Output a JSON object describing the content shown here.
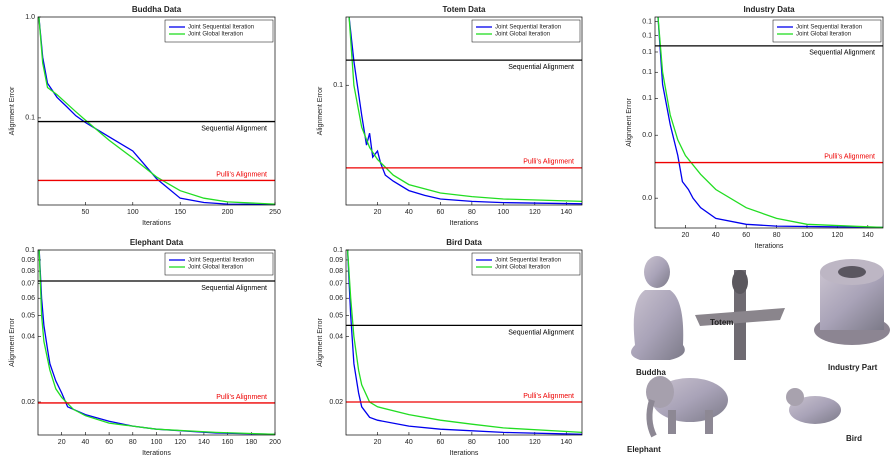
{
  "chart_data": [
    {
      "type": "line",
      "title": "Buddha Data",
      "xlabel": "Iterations",
      "ylabel": "Alignment Error",
      "log_y": true,
      "xlim": [
        0,
        250
      ],
      "ylim": [
        0.0137,
        1
      ],
      "xticks": [
        50,
        100,
        150,
        200,
        250
      ],
      "yticks": [
        {
          "value": 1,
          "label": "1.0"
        },
        0.1
      ],
      "series": [
        {
          "name": "Joint Sequential Iteration",
          "color": "#0000ee",
          "x": [
            1,
            5,
            10,
            20,
            30,
            40,
            50,
            75,
            100,
            125,
            150,
            175,
            200,
            250
          ],
          "values": [
            1.0,
            0.4,
            0.22,
            0.16,
            0.13,
            0.105,
            0.09,
            0.065,
            0.047,
            0.025,
            0.016,
            0.0145,
            0.014,
            0.0138
          ]
        },
        {
          "name": "Joint Global Iteration",
          "color": "#22dd22",
          "x": [
            1,
            5,
            10,
            20,
            30,
            40,
            50,
            75,
            100,
            125,
            150,
            175,
            200,
            250
          ],
          "values": [
            1.0,
            0.35,
            0.2,
            0.17,
            0.14,
            0.115,
            0.095,
            0.06,
            0.04,
            0.026,
            0.019,
            0.016,
            0.0147,
            0.014
          ]
        }
      ],
      "hlines": [
        {
          "label": "Sequential Alignment",
          "value": 0.092,
          "color": "#000000"
        },
        {
          "label": "Pulli's Alignment",
          "value": 0.024,
          "color": "#ee0000"
        }
      ]
    },
    {
      "type": "line",
      "title": "Totem Data",
      "xlabel": "Iterations",
      "ylabel": "Alignment Error",
      "log_y": false,
      "xlim": [
        0,
        150
      ],
      "ylim": [
        0,
        0.157
      ],
      "xticks": [
        20,
        40,
        60,
        80,
        100,
        120,
        140
      ],
      "yticks": [
        0.1
      ],
      "series": [
        {
          "name": "Joint Sequential Iteration",
          "color": "#0000ee",
          "x": [
            2,
            5,
            10,
            13,
            15,
            17,
            20,
            22,
            25,
            30,
            40,
            50,
            60,
            80,
            100,
            150
          ],
          "values": [
            0.157,
            0.12,
            0.075,
            0.05,
            0.06,
            0.04,
            0.045,
            0.035,
            0.025,
            0.02,
            0.012,
            0.008,
            0.005,
            0.003,
            0.002,
            0.001
          ]
        },
        {
          "name": "Joint Global Iteration",
          "color": "#22dd22",
          "x": [
            2,
            5,
            10,
            15,
            20,
            30,
            40,
            60,
            80,
            100,
            150
          ],
          "values": [
            0.157,
            0.1,
            0.065,
            0.048,
            0.038,
            0.025,
            0.017,
            0.01,
            0.007,
            0.005,
            0.003
          ]
        }
      ],
      "hlines": [
        {
          "label": "Sequential Alignment",
          "value": 0.121,
          "color": "#000000"
        },
        {
          "label": "Pulli's Alignment",
          "value": 0.031,
          "color": "#ee0000"
        }
      ]
    },
    {
      "type": "line",
      "title": "Industry Data",
      "xlabel": "Iterations",
      "ylabel": "Alignment Error",
      "log_y": true,
      "xlim": [
        0,
        150
      ],
      "ylim": [
        0.0144,
        0.147
      ],
      "xticks": [
        20,
        40,
        60,
        80,
        100,
        120,
        140
      ],
      "yticks": [
        {
          "value": 0.14,
          "label": "0.1"
        },
        {
          "value": 0.12,
          "label": "0.1"
        },
        {
          "value": 0.1,
          "label": "0.1"
        },
        {
          "value": 0.08,
          "label": "0.1"
        },
        {
          "value": 0.06,
          "label": "0.1"
        },
        {
          "value": 0.04,
          "label": "0.0"
        },
        {
          "value": 0.02,
          "label": "0.0"
        }
      ],
      "series": [
        {
          "name": "Joint Sequential Iteration",
          "color": "#0000ee",
          "x": [
            2,
            5,
            10,
            15,
            18,
            22,
            25,
            30,
            40,
            60,
            80,
            150
          ],
          "values": [
            0.147,
            0.07,
            0.045,
            0.032,
            0.024,
            0.022,
            0.02,
            0.018,
            0.016,
            0.015,
            0.0147,
            0.0145
          ]
        },
        {
          "name": "Joint Global Iteration",
          "color": "#22dd22",
          "x": [
            2,
            5,
            10,
            15,
            20,
            30,
            40,
            60,
            80,
            100,
            150
          ],
          "values": [
            0.147,
            0.08,
            0.05,
            0.038,
            0.032,
            0.026,
            0.022,
            0.018,
            0.016,
            0.015,
            0.0145
          ]
        }
      ],
      "hlines": [
        {
          "label": "Sequential Alignment",
          "value": 0.107,
          "color": "#000000"
        },
        {
          "label": "Pulli's Alignment",
          "value": 0.0296,
          "color": "#ee0000"
        }
      ]
    },
    {
      "type": "line",
      "title": "Elephant Data",
      "xlabel": "Iterations",
      "ylabel": "Alignment Error",
      "log_y": true,
      "xlim": [
        0,
        200
      ],
      "ylim": [
        0.0141,
        0.1
      ],
      "xticks": [
        20,
        40,
        60,
        80,
        100,
        120,
        140,
        160,
        180,
        200
      ],
      "yticks": [
        0.1,
        0.09,
        0.08,
        0.07,
        0.06,
        0.05,
        0.04,
        0.02
      ],
      "series": [
        {
          "name": "Joint Sequential Iteration",
          "color": "#0000ee",
          "x": [
            1,
            3,
            5,
            8,
            10,
            15,
            20,
            25,
            40,
            60,
            80,
            100,
            150,
            200
          ],
          "values": [
            0.1,
            0.06,
            0.045,
            0.035,
            0.03,
            0.025,
            0.022,
            0.019,
            0.0175,
            0.0163,
            0.0155,
            0.015,
            0.0144,
            0.0142
          ]
        },
        {
          "name": "Joint Global Iteration",
          "color": "#22dd22",
          "x": [
            1,
            3,
            5,
            10,
            15,
            20,
            30,
            40,
            60,
            100,
            150,
            200
          ],
          "values": [
            0.1,
            0.05,
            0.038,
            0.028,
            0.023,
            0.021,
            0.0185,
            0.0173,
            0.016,
            0.015,
            0.0145,
            0.0142
          ]
        }
      ],
      "hlines": [
        {
          "label": "Sequential Alignment",
          "value": 0.072,
          "color": "#000000"
        },
        {
          "label": "Pulli's Alignment",
          "value": 0.0198,
          "color": "#ee0000"
        }
      ]
    },
    {
      "type": "line",
      "title": "Bird Data",
      "xlabel": "Iterations",
      "ylabel": "Alignment Error",
      "log_y": true,
      "xlim": [
        0,
        150
      ],
      "ylim": [
        0.0141,
        0.1
      ],
      "xticks": [
        20,
        40,
        60,
        80,
        100,
        120,
        140
      ],
      "yticks": [
        0.1,
        0.09,
        0.08,
        0.07,
        0.06,
        0.05,
        0.04,
        0.02
      ],
      "series": [
        {
          "name": "Joint Sequential Iteration",
          "color": "#0000ee",
          "x": [
            1,
            3,
            5,
            8,
            10,
            15,
            20,
            40,
            60,
            100,
            150
          ],
          "values": [
            0.1,
            0.05,
            0.03,
            0.022,
            0.019,
            0.017,
            0.0165,
            0.0155,
            0.015,
            0.0145,
            0.0142
          ]
        },
        {
          "name": "Joint Global Iteration",
          "color": "#22dd22",
          "x": [
            1,
            3,
            5,
            8,
            10,
            15,
            20,
            40,
            60,
            80,
            100,
            150
          ],
          "values": [
            0.1,
            0.06,
            0.04,
            0.028,
            0.024,
            0.02,
            0.019,
            0.0175,
            0.0165,
            0.0158,
            0.0152,
            0.0145
          ]
        }
      ],
      "hlines": [
        {
          "label": "Sequential Alignment",
          "value": 0.045,
          "color": "#000000"
        },
        {
          "label": "Pulli's Alignment",
          "value": 0.02,
          "color": "#ee0000"
        }
      ]
    }
  ],
  "illustration": {
    "labels": [
      "Buddha",
      "Totem",
      "Industry Part",
      "Elephant",
      "Bird"
    ]
  }
}
